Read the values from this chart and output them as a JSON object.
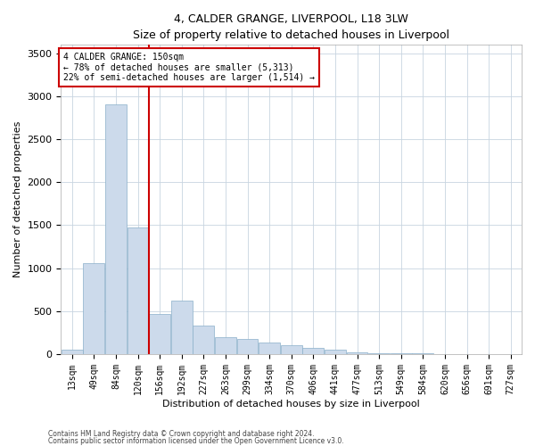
{
  "title": "4, CALDER GRANGE, LIVERPOOL, L18 3LW",
  "subtitle": "Size of property relative to detached houses in Liverpool",
  "xlabel": "Distribution of detached houses by size in Liverpool",
  "ylabel": "Number of detached properties",
  "footnote1": "Contains HM Land Registry data © Crown copyright and database right 2024.",
  "footnote2": "Contains public sector information licensed under the Open Government Licence v3.0.",
  "ann_line1": "4 CALDER GRANGE: 150sqm",
  "ann_line2": "← 78% of detached houses are smaller (5,313)",
  "ann_line3": "22% of semi-detached houses are larger (1,514) →",
  "bar_color": "#ccdaeb",
  "bar_edge_color": "#8aafc9",
  "grid_color": "#c8d4e0",
  "vline_color": "#cc0000",
  "ann_edge_color": "#cc0000",
  "categories": [
    "13sqm",
    "49sqm",
    "84sqm",
    "120sqm",
    "156sqm",
    "192sqm",
    "227sqm",
    "263sqm",
    "299sqm",
    "334sqm",
    "370sqm",
    "406sqm",
    "441sqm",
    "477sqm",
    "513sqm",
    "549sqm",
    "584sqm",
    "620sqm",
    "656sqm",
    "691sqm",
    "727sqm"
  ],
  "bar_heights": [
    48,
    1060,
    2900,
    1470,
    470,
    620,
    330,
    200,
    175,
    130,
    100,
    75,
    50,
    18,
    12,
    8,
    5,
    3,
    2,
    1,
    1
  ],
  "vline_after_idx": 4,
  "ylim": [
    0,
    3600
  ],
  "yticks": [
    0,
    500,
    1000,
    1500,
    2000,
    2500,
    3000,
    3500
  ],
  "title_fontsize": 9,
  "subtitle_fontsize": 8,
  "axis_label_fontsize": 8,
  "tick_fontsize": 7,
  "ann_fontsize": 7,
  "footnote_fontsize": 5.5
}
